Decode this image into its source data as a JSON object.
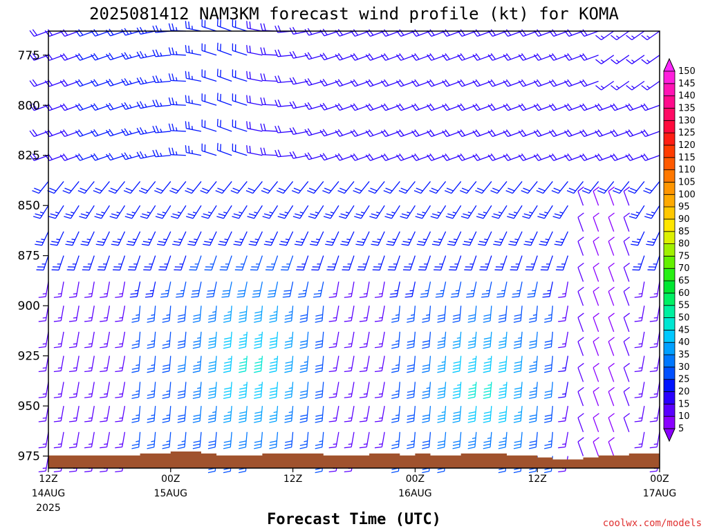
{
  "chart_data": {
    "type": "wind-barb",
    "title": "2025081412 NAM3KM forecast wind profile (kt) for KOMA",
    "xlabel": "Forecast Time (UTC)",
    "ylabel": "",
    "credit": "coolwx.com/models",
    "y_axis": {
      "ticks": [
        "775",
        "800",
        "825",
        "850",
        "875",
        "900",
        "925",
        "950",
        "975"
      ],
      "ylim": [
        763,
        981
      ],
      "inverted": true,
      "levels": [
        763,
        775,
        788,
        800,
        813,
        825,
        838,
        850,
        863,
        875,
        888,
        900,
        913,
        925,
        938,
        950,
        963,
        975
      ]
    },
    "x_axis": {
      "ticks": [
        {
          "label1": "12Z",
          "label2": "14AUG",
          "label3": "2025",
          "hour": 0
        },
        {
          "label1": "00Z",
          "label2": "15AUG",
          "label3": "",
          "hour": 12
        },
        {
          "label1": "12Z",
          "label2": "",
          "label3": "",
          "hour": 24
        },
        {
          "label1": "00Z",
          "label2": "16AUG",
          "label3": "",
          "hour": 36
        },
        {
          "label1": "12Z",
          "label2": "",
          "label3": "",
          "hour": 48
        },
        {
          "label1": "00Z",
          "label2": "17AUG",
          "label3": "",
          "hour": 60
        }
      ],
      "hours": [
        0,
        60
      ],
      "step_hours": 1.5
    },
    "colorbar": {
      "levels": [
        5,
        10,
        15,
        20,
        25,
        30,
        35,
        40,
        45,
        50,
        55,
        60,
        65,
        70,
        75,
        80,
        85,
        90,
        95,
        100,
        105,
        110,
        115,
        120,
        125,
        130,
        135,
        140,
        145,
        150
      ],
      "colors": [
        "#8a00ff",
        "#5a00ff",
        "#2a00ff",
        "#0014ff",
        "#0050ff",
        "#0078ff",
        "#00a0ff",
        "#00c8ff",
        "#00e6d2",
        "#00f0a0",
        "#00f064",
        "#00e632",
        "#28f014",
        "#64f000",
        "#a0f000",
        "#dcf000",
        "#ffe600",
        "#ffc800",
        "#ffaa00",
        "#ff9600",
        "#ff7800",
        "#ff5a00",
        "#ff3c00",
        "#ff1e14",
        "#ff0a3c",
        "#ff0a64",
        "#ff0a8c",
        "#ff14b4",
        "#ff1edc",
        "#ff28ff"
      ]
    },
    "terrain_color": "#a0522d",
    "surface_pressure": [
      975,
      975,
      975,
      975,
      975,
      975,
      974,
      974,
      973,
      973,
      974,
      975,
      975,
      975,
      974,
      974,
      974,
      974,
      975,
      975,
      975,
      974,
      974,
      975,
      974,
      975,
      975,
      974,
      974,
      974,
      975,
      975,
      976,
      977,
      977,
      976,
      975,
      975,
      974,
      974,
      975
    ],
    "wind_regimes": [
      {
        "name": "westerly-upper",
        "dir_deg": 245,
        "speed_kt": 20
      },
      {
        "name": "southerly-lower",
        "dir_deg": 175,
        "speed_kt": 30
      },
      {
        "name": "southerly-jet-night1",
        "dir_deg": 195,
        "speed_kt": 40
      },
      {
        "name": "southerly-jet-night2",
        "dir_deg": 200,
        "speed_kt": 45
      },
      {
        "name": "weak-north",
        "dir_deg": 350,
        "speed_kt": 8
      }
    ]
  }
}
